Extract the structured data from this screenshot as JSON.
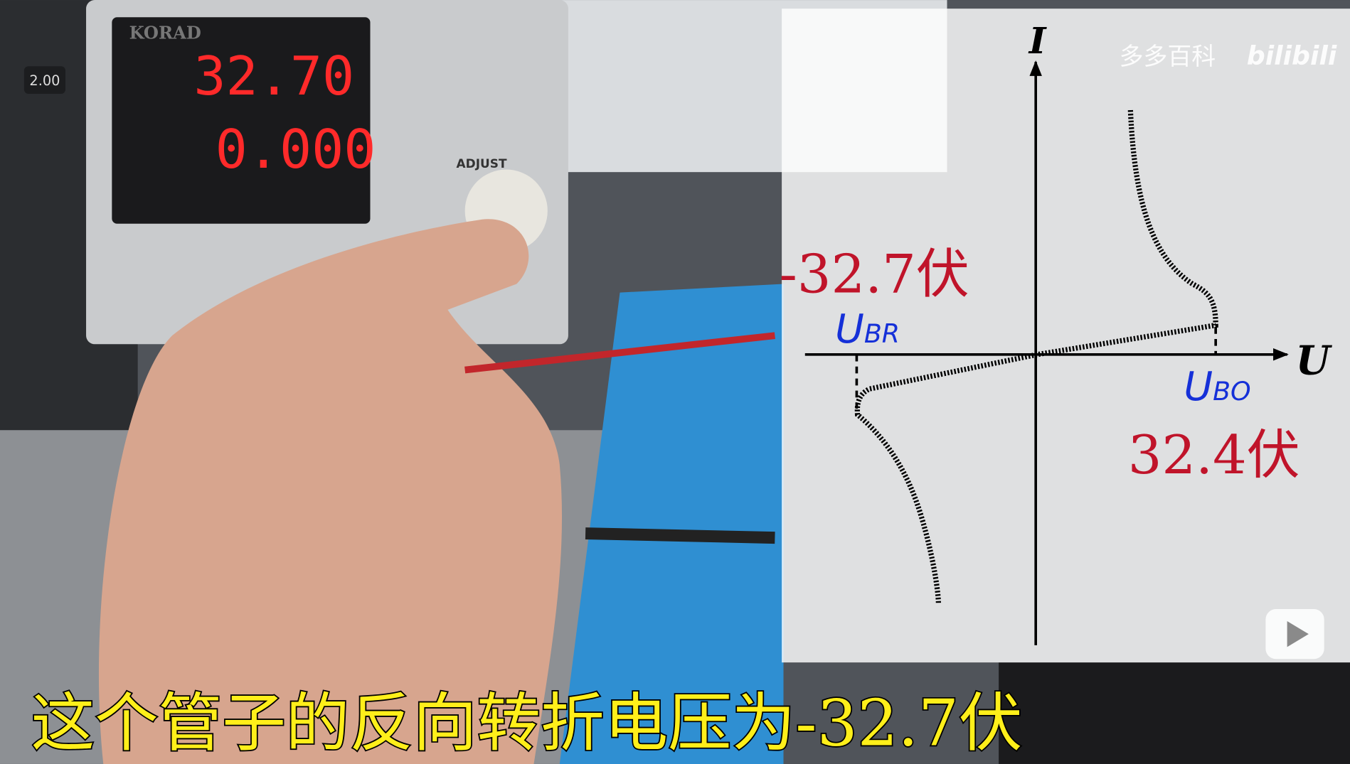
{
  "player": {
    "speed": "2.00"
  },
  "scene": {
    "brand": "KORAD",
    "voltage_display": "32.70",
    "current_display": "0.000",
    "knob_label": "ADJUST"
  },
  "overlay": {
    "axis_y": "I",
    "axis_x": "U",
    "ubr": {
      "main": "U",
      "sub": "BR"
    },
    "ubo": {
      "main": "U",
      "sub": "BO"
    },
    "negative_label": "-32.7伏",
    "positive_label": "32.4伏",
    "watermark": "多多百科",
    "logo": "bilibili"
  },
  "subtitle": "这个管子的反向转折电压为-32.7伏"
}
